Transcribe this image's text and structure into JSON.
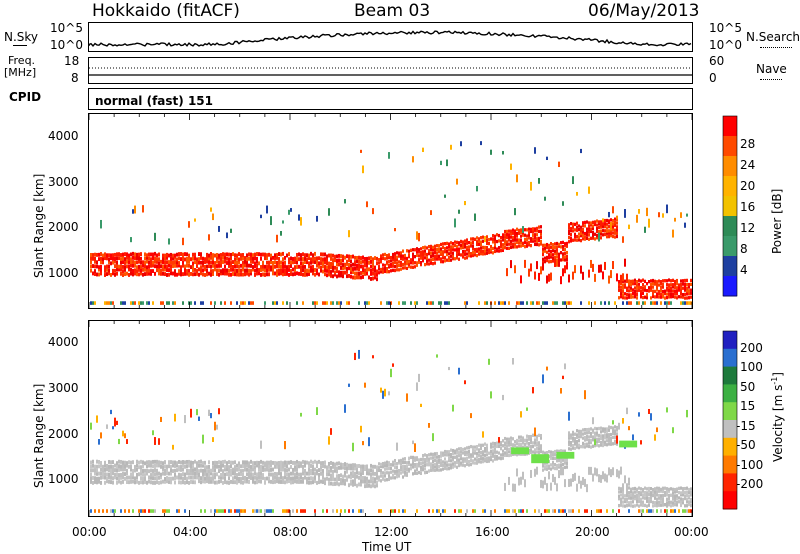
{
  "header": {
    "station": "Hokkaido (fitACF)",
    "beam": "Beam 03",
    "date": "06/May/2013"
  },
  "top_panels": {
    "nsky_label": "N.Sky",
    "nsky_ticks": [
      "10^5",
      "10^0"
    ],
    "nsearch_label": "N.Search",
    "nsearch_ticks": [
      "10^5",
      "10^0"
    ],
    "freq_label_1": "Freq.",
    "freq_label_2": "[MHz]",
    "freq_ticks": [
      "18",
      "8"
    ],
    "nave_label": "Nave",
    "nave_ticks": [
      "60",
      "0"
    ],
    "cpid_label": "CPID",
    "cpid_text": "normal (fast) 151"
  },
  "chart_data": [
    {
      "type": "heatmap",
      "name": "power",
      "ylabel": "Slant Range [km]",
      "xlabel": "",
      "yticks": [
        "4000",
        "3000",
        "2000",
        "1000"
      ],
      "ylim": [
        180,
        4500
      ],
      "colorbar": {
        "label": "Power [dB]",
        "ticks": [
          "28",
          "24",
          "20",
          "16",
          "12",
          "8",
          "4"
        ],
        "colors": [
          "#ff0000",
          "#ff4a00",
          "#ff8c00",
          "#ffb300",
          "#f2c200",
          "#2e8b57",
          "#3a9a6a",
          "#1e3fa0",
          "#1a1aff"
        ]
      },
      "bands": [
        {
          "desc": "near-range strong echo",
          "t_start": 0.0,
          "t_end": 11.5,
          "r_low": 850,
          "r_high": 1450,
          "level": "strong"
        },
        {
          "desc": "rising band",
          "t_start": 11.5,
          "t_end": 16.5,
          "r_low": 1250,
          "r_high": 1900,
          "level": "strong"
        },
        {
          "desc": "late band",
          "t_start": 16.5,
          "t_end": 21.0,
          "r_low": 1650,
          "r_high": 2200,
          "level": "strong"
        },
        {
          "desc": "evening near range",
          "t_start": 21.0,
          "t_end": 24.0,
          "r_low": 350,
          "r_high": 850,
          "level": "strong"
        },
        {
          "desc": "sparse far echoes",
          "t_start": 0.0,
          "t_end": 24.0,
          "r_low": 1900,
          "r_high": 4300,
          "level": "weak"
        }
      ]
    },
    {
      "type": "heatmap",
      "name": "velocity",
      "ylabel": "Slant Range [km]",
      "xlabel": "Time UT",
      "yticks": [
        "4000",
        "3000",
        "2000",
        "1000"
      ],
      "ylim": [
        180,
        4500
      ],
      "xticks": [
        "00:00",
        "04:00",
        "08:00",
        "12:00",
        "16:00",
        "20:00",
        "00:00"
      ],
      "xlim_hours": [
        0,
        24
      ],
      "colorbar": {
        "label": "Velocity [m s^-1]",
        "ticks": [
          "200",
          "100",
          "50",
          "15",
          "-15",
          "-50",
          "-100",
          "-200"
        ],
        "colors": [
          "#2020c0",
          "#2a6fd0",
          "#1e7a3c",
          "#3cb043",
          "#7fd848",
          "#c0c0c0",
          "#ffb000",
          "#ff7a00",
          "#ff2400",
          "#ff0000"
        ]
      }
    }
  ]
}
